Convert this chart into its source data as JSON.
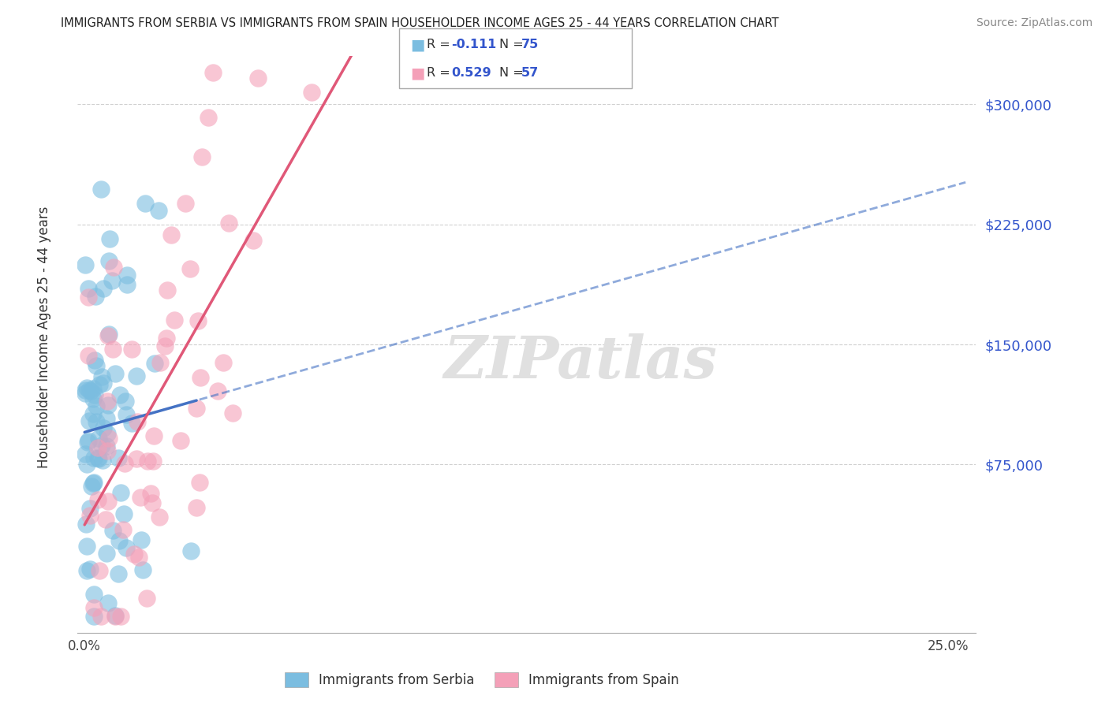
{
  "title": "IMMIGRANTS FROM SERBIA VS IMMIGRANTS FROM SPAIN HOUSEHOLDER INCOME AGES 25 - 44 YEARS CORRELATION CHART",
  "source": "Source: ZipAtlas.com",
  "ylabel": "Householder Income Ages 25 - 44 years",
  "y_ticks": [
    75000,
    150000,
    225000,
    300000
  ],
  "y_tick_labels": [
    "$75,000",
    "$150,000",
    "$225,000",
    "$300,000"
  ],
  "y_min": -30000,
  "y_max": 330000,
  "x_min": -0.002,
  "x_max": 0.258,
  "serbia_R": -0.111,
  "serbia_N": 75,
  "spain_R": 0.529,
  "spain_N": 57,
  "serbia_color": "#7bbde0",
  "spain_color": "#f4a0b8",
  "serbia_line_color": "#4472c4",
  "spain_line_color": "#e05878",
  "tick_color": "#3355cc",
  "watermark": "ZIPatlas",
  "serbia_seed": 10,
  "spain_seed": 20,
  "legend_serbia_label": "R = -0.111   N = 75",
  "legend_spain_label": "R = 0.529   N = 57"
}
